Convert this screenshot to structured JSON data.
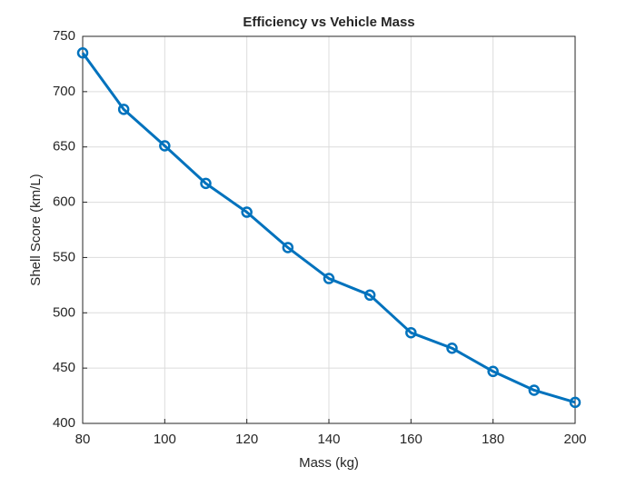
{
  "chart_data": {
    "type": "line",
    "title": "Efficiency vs Vehicle Mass",
    "x_label": "Mass (kg)",
    "y_label": "Shell Score (km/L)",
    "x": [
      80,
      90,
      100,
      110,
      120,
      130,
      140,
      150,
      160,
      170,
      180,
      190,
      200
    ],
    "series": [
      {
        "name": "Shell Score",
        "color": "#0072bd",
        "values": [
          735,
          684,
          651,
          617,
          591,
          559,
          531,
          516,
          482,
          468,
          447,
          430,
          419
        ]
      }
    ],
    "xlim": [
      80,
      200
    ],
    "xticks": [
      80,
      100,
      120,
      140,
      160,
      180,
      200
    ],
    "ylim": [
      400,
      750
    ],
    "yticks": [
      400,
      450,
      500,
      550,
      600,
      650,
      700,
      750
    ],
    "grid": true,
    "markers": true
  }
}
